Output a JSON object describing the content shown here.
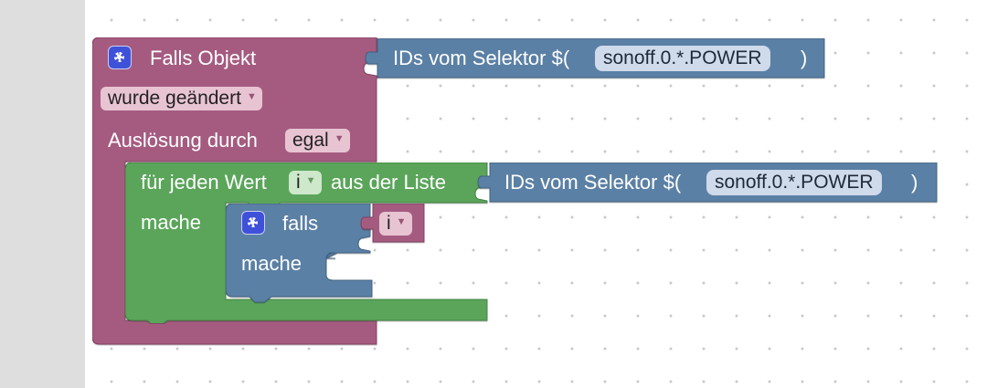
{
  "colors": {
    "event_block": "#a55b80",
    "loop_block": "#5ba55b",
    "logic_block": "#5b80a5",
    "selector_block": "#5b80a5",
    "workspace": "#ffffff",
    "side_panel": "#dedede"
  },
  "event_block": {
    "icon": "gear-icon",
    "title": "Falls Objekt",
    "trigger_dropdown": "wurde geändert",
    "trigger_source_label": "Auslösung durch",
    "trigger_source_dropdown": "egal"
  },
  "selector_top": {
    "label_prefix": "IDs vom Selektor $(",
    "value": "sonoff.0.*.POWER",
    "label_suffix": ")"
  },
  "foreach_block": {
    "label_for": "für jeden Wert",
    "var_dropdown": "i",
    "label_from": "aus der Liste",
    "label_do": "mache"
  },
  "selector_inner": {
    "label_prefix": "IDs vom Selektor $(",
    "value": "sonoff.0.*.POWER",
    "label_suffix": ")"
  },
  "if_block": {
    "icon": "gear-icon",
    "label_if": "falls",
    "label_do": "mache"
  },
  "variable_block": {
    "var_dropdown": "i"
  }
}
